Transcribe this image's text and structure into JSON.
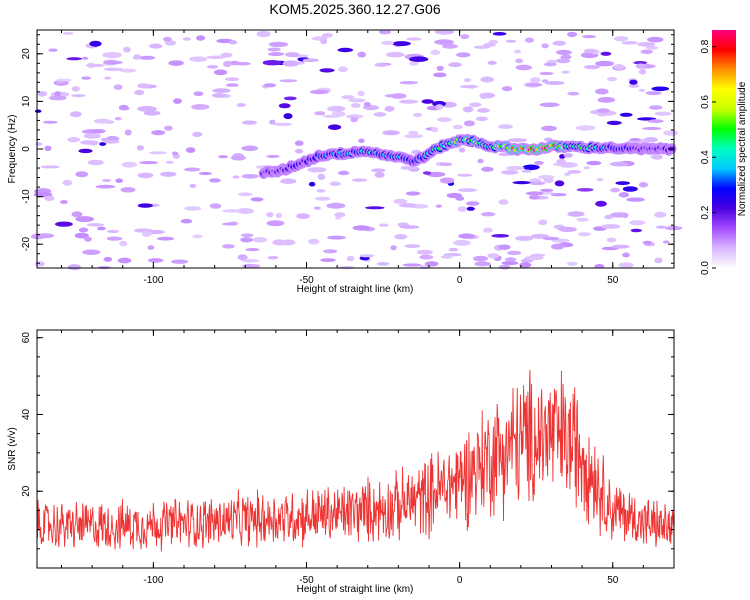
{
  "title": "KOM5.2025.360.12.27.G06",
  "chart_data": [
    {
      "type": "heatmap",
      "name": "spectrogram",
      "xlabel": "Height of straight line (km)",
      "ylabel": "Frequency (Hz)",
      "xlim": [
        -138,
        70
      ],
      "ylim": [
        -25,
        25
      ],
      "xticks": [
        -100,
        -50,
        0,
        50
      ],
      "xtick_labels": [
        "-100",
        "-50",
        "0",
        "50"
      ],
      "yticks": [
        -20,
        -10,
        0,
        10,
        20
      ],
      "ytick_labels": [
        "-20",
        "-10",
        "0",
        "10",
        "20"
      ],
      "colorbar": {
        "label": "Normalized spectral amplitude",
        "range": [
          0,
          0.86
        ],
        "ticks": [
          0,
          0.2,
          0.4,
          0.6,
          0.8
        ],
        "tick_labels": [
          "0.0",
          "0.2",
          "0.4",
          "0.6",
          "0.8"
        ],
        "colors": [
          "#ffffff",
          "#d8b6ff",
          "#a54dff",
          "#4b00e0",
          "#0000ff",
          "#00c8ff",
          "#00ffc0",
          "#00ff00",
          "#c8ff00",
          "#ffff00",
          "#ff9000",
          "#ff0000",
          "#ff0080"
        ]
      },
      "ridge": {
        "x": [
          -64,
          -58,
          -54,
          -50,
          -46,
          -42,
          -38,
          -34,
          -30,
          -26,
          -22,
          -18,
          -14,
          -10,
          -6,
          -2,
          2,
          6,
          10,
          14,
          18,
          22,
          26,
          30,
          36,
          42,
          48,
          56,
          64,
          70
        ],
        "y": [
          -5,
          -4.5,
          -3.5,
          -2.5,
          -1.5,
          -1,
          -1,
          -0.5,
          -0.5,
          -1,
          -1.5,
          -2,
          -2.5,
          -1,
          0.5,
          1.5,
          2,
          1.5,
          0.5,
          0.5,
          0,
          0,
          0,
          0.5,
          0.5,
          0.3,
          0.3,
          0,
          0,
          0
        ],
        "amplitude": [
          0.2,
          0.2,
          0.25,
          0.25,
          0.3,
          0.3,
          0.4,
          0.35,
          0.4,
          0.35,
          0.3,
          0.35,
          0.3,
          0.4,
          0.45,
          0.5,
          0.55,
          0.5,
          0.45,
          0.55,
          0.7,
          0.8,
          0.85,
          0.75,
          0.55,
          0.45,
          0.35,
          0.25,
          0.2,
          0.2
        ]
      },
      "noise_level": 0.05
    },
    {
      "type": "line",
      "name": "snr",
      "xlabel": "Height of straight line (km)",
      "ylabel": "SNR (v/v)",
      "xlim": [
        -138,
        70
      ],
      "ylim": [
        0,
        62
      ],
      "xticks": [
        -100,
        -50,
        0,
        50
      ],
      "xtick_labels": [
        "-100",
        "-50",
        "0",
        "50"
      ],
      "yticks": [
        20,
        40,
        60
      ],
      "ytick_labels": [
        "20",
        "40",
        "60"
      ],
      "color": "#ee3333",
      "trend": {
        "x": [
          -138,
          -110,
          -80,
          -60,
          -40,
          -20,
          -10,
          0,
          10,
          20,
          30,
          40,
          45,
          50,
          60,
          70
        ],
        "y": [
          11,
          11,
          12,
          13,
          14,
          16,
          19,
          23,
          29,
          33,
          35,
          31,
          22,
          15,
          12,
          10
        ]
      },
      "noise_amplitude": [
        7,
        22
      ],
      "n_samples": 1200
    }
  ]
}
